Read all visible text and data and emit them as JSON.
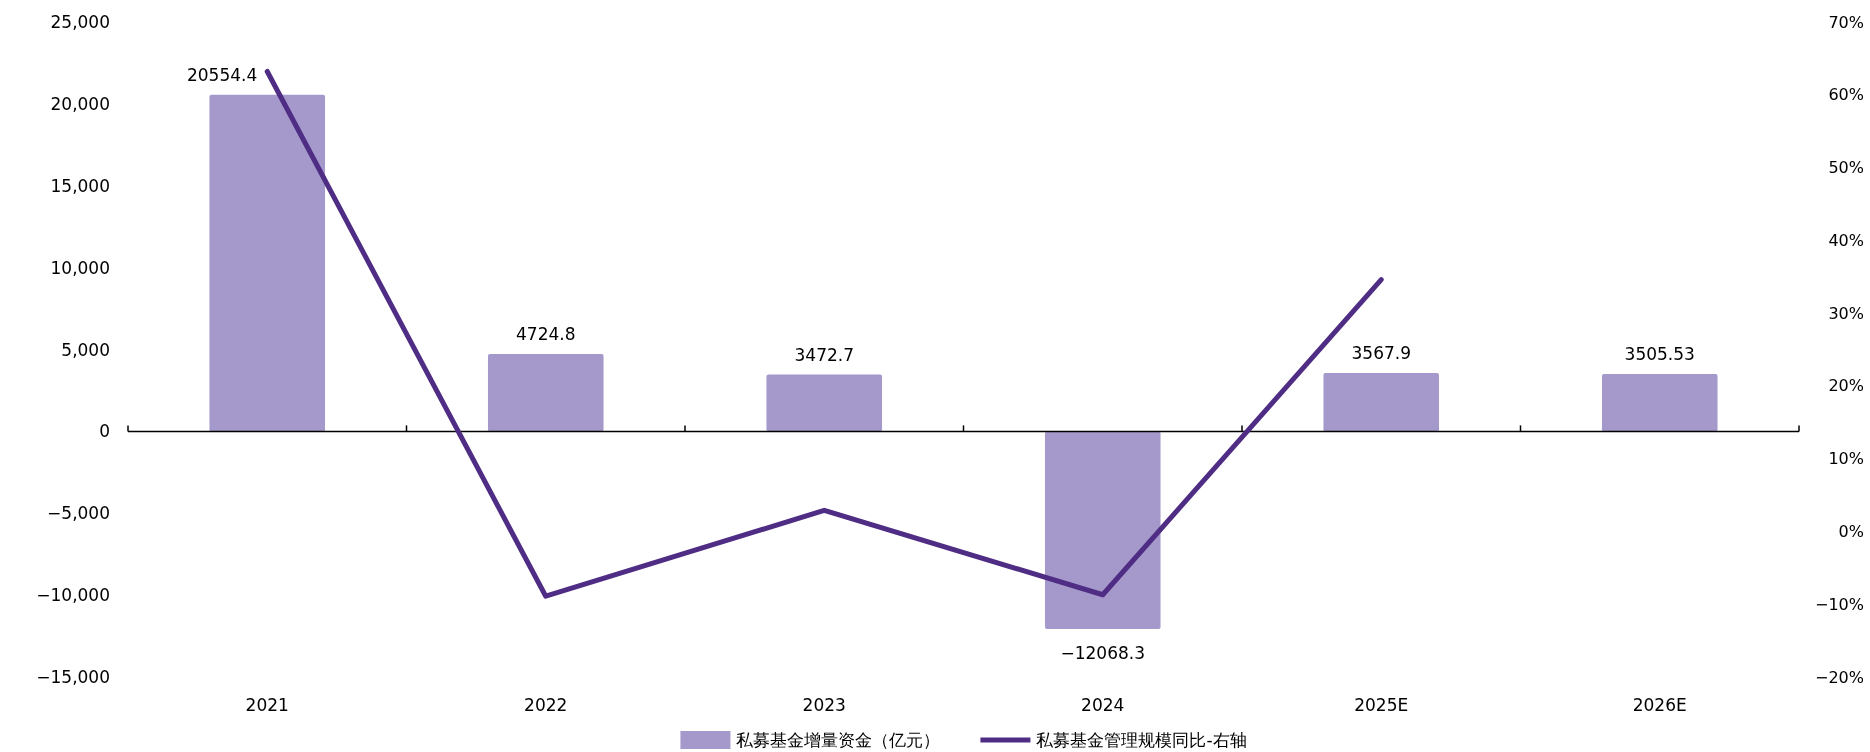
{
  "chart_data": {
    "type": "bar",
    "categories": [
      "2021",
      "2022",
      "2023",
      "2024",
      "2025E",
      "2026E"
    ],
    "series": [
      {
        "name": "私募基金增量资金（亿元）",
        "color": "#a598cb",
        "values": [
          20554.4,
          4724.8,
          3472.7,
          -12068.3,
          3567.9,
          3505.53
        ],
        "value_labels": [
          "20554.4",
          "4724.8",
          "3472.7",
          "−12068.3",
          "3567.9",
          "3505.53"
        ]
      },
      {
        "name": "私募基金管理规模同比-右轴",
        "type": "line",
        "axis": "y2",
        "color": "#4f2d84",
        "values": [
          63.2,
          -8.9,
          2.9,
          -8.7,
          34.6,
          null
        ]
      }
    ],
    "ylim": [
      -15000,
      25000
    ],
    "yticks": [
      {
        "value": -15000,
        "label": "−15,000"
      },
      {
        "value": -10000,
        "label": "−10,000"
      },
      {
        "value": -5000,
        "label": "−5,000"
      },
      0,
      {
        "value": 5000,
        "label": "5,000"
      },
      {
        "value": 10000,
        "label": "10,000"
      },
      {
        "value": 15000,
        "label": "15,000"
      },
      {
        "value": 20000,
        "label": "20,000"
      },
      {
        "value": 25000,
        "label": "25,000"
      }
    ],
    "y2lim": [
      -20,
      70
    ],
    "y2ticks": [
      {
        "value": -20,
        "label": "−20%"
      },
      {
        "value": -10,
        "label": "−10%"
      },
      {
        "value": 0,
        "label": "0%"
      },
      {
        "value": 10,
        "label": "10%"
      },
      {
        "value": 20,
        "label": "20%"
      },
      {
        "value": 30,
        "label": "30%"
      },
      {
        "value": 40,
        "label": "40%"
      },
      {
        "value": 50,
        "label": "50%"
      },
      {
        "value": 60,
        "label": "60%"
      },
      {
        "value": 70,
        "label": "70%"
      }
    ],
    "legend": "bottom"
  }
}
